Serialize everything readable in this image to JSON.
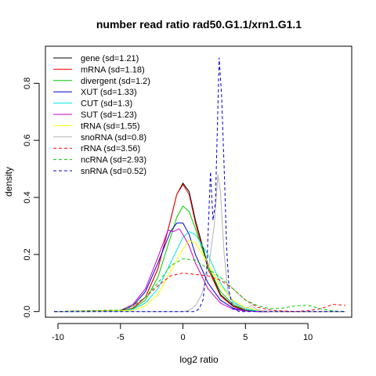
{
  "chart_data": {
    "type": "line",
    "title": "number read ratio rad50.G1.1/xrn1.G1.1",
    "xlabel": "log2 ratio",
    "ylabel": "density",
    "xlim": [
      -11,
      13.5
    ],
    "ylim": [
      -0.02,
      0.93
    ],
    "x_ticks": [
      -10,
      -5,
      0,
      5,
      10
    ],
    "y_ticks": [
      0.0,
      0.2,
      0.4,
      0.6,
      0.8
    ],
    "x_tick_labels": [
      "-10",
      "-5",
      "0",
      "5",
      "10"
    ],
    "y_tick_labels": [
      "0.0",
      "0.2",
      "0.4",
      "0.6",
      "0.8"
    ],
    "grid": false,
    "legend_position": "top-left",
    "series": [
      {
        "name": "gene (sd=1.21)",
        "color": "#000000",
        "dash": "solid",
        "points": [
          [
            -10.3,
            0
          ],
          [
            -5,
            0.002
          ],
          [
            -4,
            0.012
          ],
          [
            -3,
            0.05
          ],
          [
            -2,
            0.15
          ],
          [
            -1,
            0.32
          ],
          [
            -0.5,
            0.41
          ],
          [
            0,
            0.45
          ],
          [
            0.5,
            0.42
          ],
          [
            1,
            0.32
          ],
          [
            2,
            0.16
          ],
          [
            3,
            0.06
          ],
          [
            4,
            0.02
          ],
          [
            5,
            0.005
          ],
          [
            6,
            0
          ],
          [
            13,
            0
          ]
        ]
      },
      {
        "name": "mRNA (sd=1.18)",
        "color": "#ff0000",
        "dash": "solid",
        "points": [
          [
            -10.3,
            0
          ],
          [
            -5,
            0.002
          ],
          [
            -4,
            0.012
          ],
          [
            -3,
            0.05
          ],
          [
            -2,
            0.15
          ],
          [
            -1,
            0.32
          ],
          [
            -0.5,
            0.41
          ],
          [
            0,
            0.445
          ],
          [
            0.5,
            0.41
          ],
          [
            1,
            0.31
          ],
          [
            2,
            0.15
          ],
          [
            3,
            0.055
          ],
          [
            4,
            0.018
          ],
          [
            5,
            0.004
          ],
          [
            6,
            0
          ],
          [
            13,
            0
          ]
        ]
      },
      {
        "name": "divergent (sd=1.2)",
        "color": "#00cc00",
        "dash": "solid",
        "points": [
          [
            -10.3,
            0
          ],
          [
            -5,
            0.002
          ],
          [
            -4,
            0.01
          ],
          [
            -3,
            0.04
          ],
          [
            -2,
            0.12
          ],
          [
            -1,
            0.26
          ],
          [
            -0.5,
            0.33
          ],
          [
            0,
            0.37
          ],
          [
            0.5,
            0.35
          ],
          [
            1,
            0.29
          ],
          [
            2,
            0.16
          ],
          [
            3,
            0.07
          ],
          [
            4,
            0.025
          ],
          [
            5,
            0.006
          ],
          [
            6,
            0
          ],
          [
            13,
            0
          ]
        ]
      },
      {
        "name": "XUT (sd=1.33)",
        "color": "#0000cc",
        "dash": "solid",
        "points": [
          [
            -10.3,
            0
          ],
          [
            -5,
            0.003
          ],
          [
            -4,
            0.02
          ],
          [
            -3,
            0.07
          ],
          [
            -2,
            0.17
          ],
          [
            -1,
            0.28
          ],
          [
            -0.5,
            0.31
          ],
          [
            0,
            0.31
          ],
          [
            0.5,
            0.27
          ],
          [
            1,
            0.2
          ],
          [
            2,
            0.1
          ],
          [
            3,
            0.04
          ],
          [
            4,
            0.012
          ],
          [
            5,
            0.003
          ],
          [
            6,
            0
          ],
          [
            13,
            0
          ]
        ]
      },
      {
        "name": "CUT (sd=1.3)",
        "color": "#00e5e5",
        "dash": "solid",
        "points": [
          [
            -10.3,
            0
          ],
          [
            -5,
            0.001
          ],
          [
            -4,
            0.008
          ],
          [
            -3,
            0.03
          ],
          [
            -2,
            0.08
          ],
          [
            -1,
            0.17
          ],
          [
            0,
            0.26
          ],
          [
            0.5,
            0.28
          ],
          [
            1,
            0.27
          ],
          [
            2,
            0.2
          ],
          [
            3,
            0.1
          ],
          [
            4,
            0.035
          ],
          [
            5,
            0.01
          ],
          [
            6,
            0.002
          ],
          [
            7,
            0
          ],
          [
            13,
            0
          ]
        ]
      },
      {
        "name": "SUT (sd=1.23)",
        "color": "#cc00cc",
        "dash": "solid",
        "points": [
          [
            -10.3,
            0
          ],
          [
            -5,
            0.004
          ],
          [
            -4,
            0.025
          ],
          [
            -3,
            0.08
          ],
          [
            -2,
            0.19
          ],
          [
            -1.2,
            0.285
          ],
          [
            -0.8,
            0.28
          ],
          [
            -0.3,
            0.29
          ],
          [
            0,
            0.27
          ],
          [
            0.5,
            0.23
          ],
          [
            1,
            0.17
          ],
          [
            2,
            0.08
          ],
          [
            3,
            0.03
          ],
          [
            4,
            0.008
          ],
          [
            5,
            0.002
          ],
          [
            6,
            0
          ],
          [
            13,
            0
          ]
        ]
      },
      {
        "name": "tRNA (sd=1.55)",
        "color": "#ffff00",
        "dash": "solid",
        "points": [
          [
            -10.3,
            0
          ],
          [
            -4,
            0.004
          ],
          [
            -3,
            0.02
          ],
          [
            -2,
            0.06
          ],
          [
            -1,
            0.14
          ],
          [
            0,
            0.22
          ],
          [
            0.5,
            0.25
          ],
          [
            1,
            0.24
          ],
          [
            2,
            0.17
          ],
          [
            3,
            0.09
          ],
          [
            4,
            0.04
          ],
          [
            5,
            0.015
          ],
          [
            6,
            0.004
          ],
          [
            7,
            0
          ],
          [
            13,
            0
          ]
        ]
      },
      {
        "name": "snoRNA (sd=0.8)",
        "color": "#b3b3b3",
        "dash": "solid",
        "points": [
          [
            -10.3,
            0
          ],
          [
            0,
            0
          ],
          [
            0.5,
            0.004
          ],
          [
            1,
            0.02
          ],
          [
            1.5,
            0.06
          ],
          [
            2,
            0.14
          ],
          [
            2.5,
            0.3
          ],
          [
            2.8,
            0.48
          ],
          [
            3,
            0.42
          ],
          [
            3.3,
            0.2
          ],
          [
            3.6,
            0.07
          ],
          [
            4,
            0.03
          ],
          [
            5,
            0.01
          ],
          [
            5.5,
            0.02
          ],
          [
            6,
            0.005
          ],
          [
            7,
            0
          ],
          [
            13,
            0
          ]
        ]
      },
      {
        "name": "rRNA (sd=3.56)",
        "color": "#ff0000",
        "dash": "4,3",
        "points": [
          [
            -10.3,
            0
          ],
          [
            -5,
            0.005
          ],
          [
            -4,
            0.02
          ],
          [
            -3,
            0.05
          ],
          [
            -2,
            0.09
          ],
          [
            -1,
            0.125
          ],
          [
            0,
            0.135
          ],
          [
            1,
            0.13
          ],
          [
            2,
            0.125
          ],
          [
            3,
            0.11
          ],
          [
            4,
            0.08
          ],
          [
            5,
            0.04
          ],
          [
            6,
            0.015
          ],
          [
            7,
            0.005
          ],
          [
            8,
            0.002
          ],
          [
            9,
            0
          ],
          [
            10,
            0.003
          ],
          [
            11,
            0.01
          ],
          [
            12,
            0.025
          ],
          [
            13,
            0.022
          ]
        ]
      },
      {
        "name": "ncRNA (sd=2.93)",
        "color": "#00cc00",
        "dash": "4,3",
        "points": [
          [
            -10.3,
            0
          ],
          [
            -5,
            0.005
          ],
          [
            -4,
            0.02
          ],
          [
            -3,
            0.05
          ],
          [
            -2,
            0.1
          ],
          [
            -1,
            0.16
          ],
          [
            0,
            0.185
          ],
          [
            1,
            0.18
          ],
          [
            2,
            0.15
          ],
          [
            3,
            0.12
          ],
          [
            4,
            0.08
          ],
          [
            5,
            0.04
          ],
          [
            6,
            0.02
          ],
          [
            7,
            0.01
          ],
          [
            8,
            0.012
          ],
          [
            9,
            0.02
          ],
          [
            10,
            0.022
          ],
          [
            11,
            0.01
          ],
          [
            12,
            0.002
          ],
          [
            13,
            0
          ]
        ]
      },
      {
        "name": "snRNA (sd=0.52)",
        "color": "#0000cc",
        "dash": "4,3",
        "points": [
          [
            -10.3,
            0
          ],
          [
            1,
            0
          ],
          [
            1.3,
            0.01
          ],
          [
            1.6,
            0.04
          ],
          [
            1.9,
            0.15
          ],
          [
            2.2,
            0.49
          ],
          [
            2.4,
            0.32
          ],
          [
            2.6,
            0.38
          ],
          [
            2.8,
            0.72
          ],
          [
            2.9,
            0.89
          ],
          [
            3.1,
            0.75
          ],
          [
            3.3,
            0.5
          ],
          [
            3.5,
            0.22
          ],
          [
            3.7,
            0.07
          ],
          [
            4,
            0.01
          ],
          [
            4.5,
            0
          ],
          [
            13,
            0
          ]
        ]
      }
    ]
  }
}
